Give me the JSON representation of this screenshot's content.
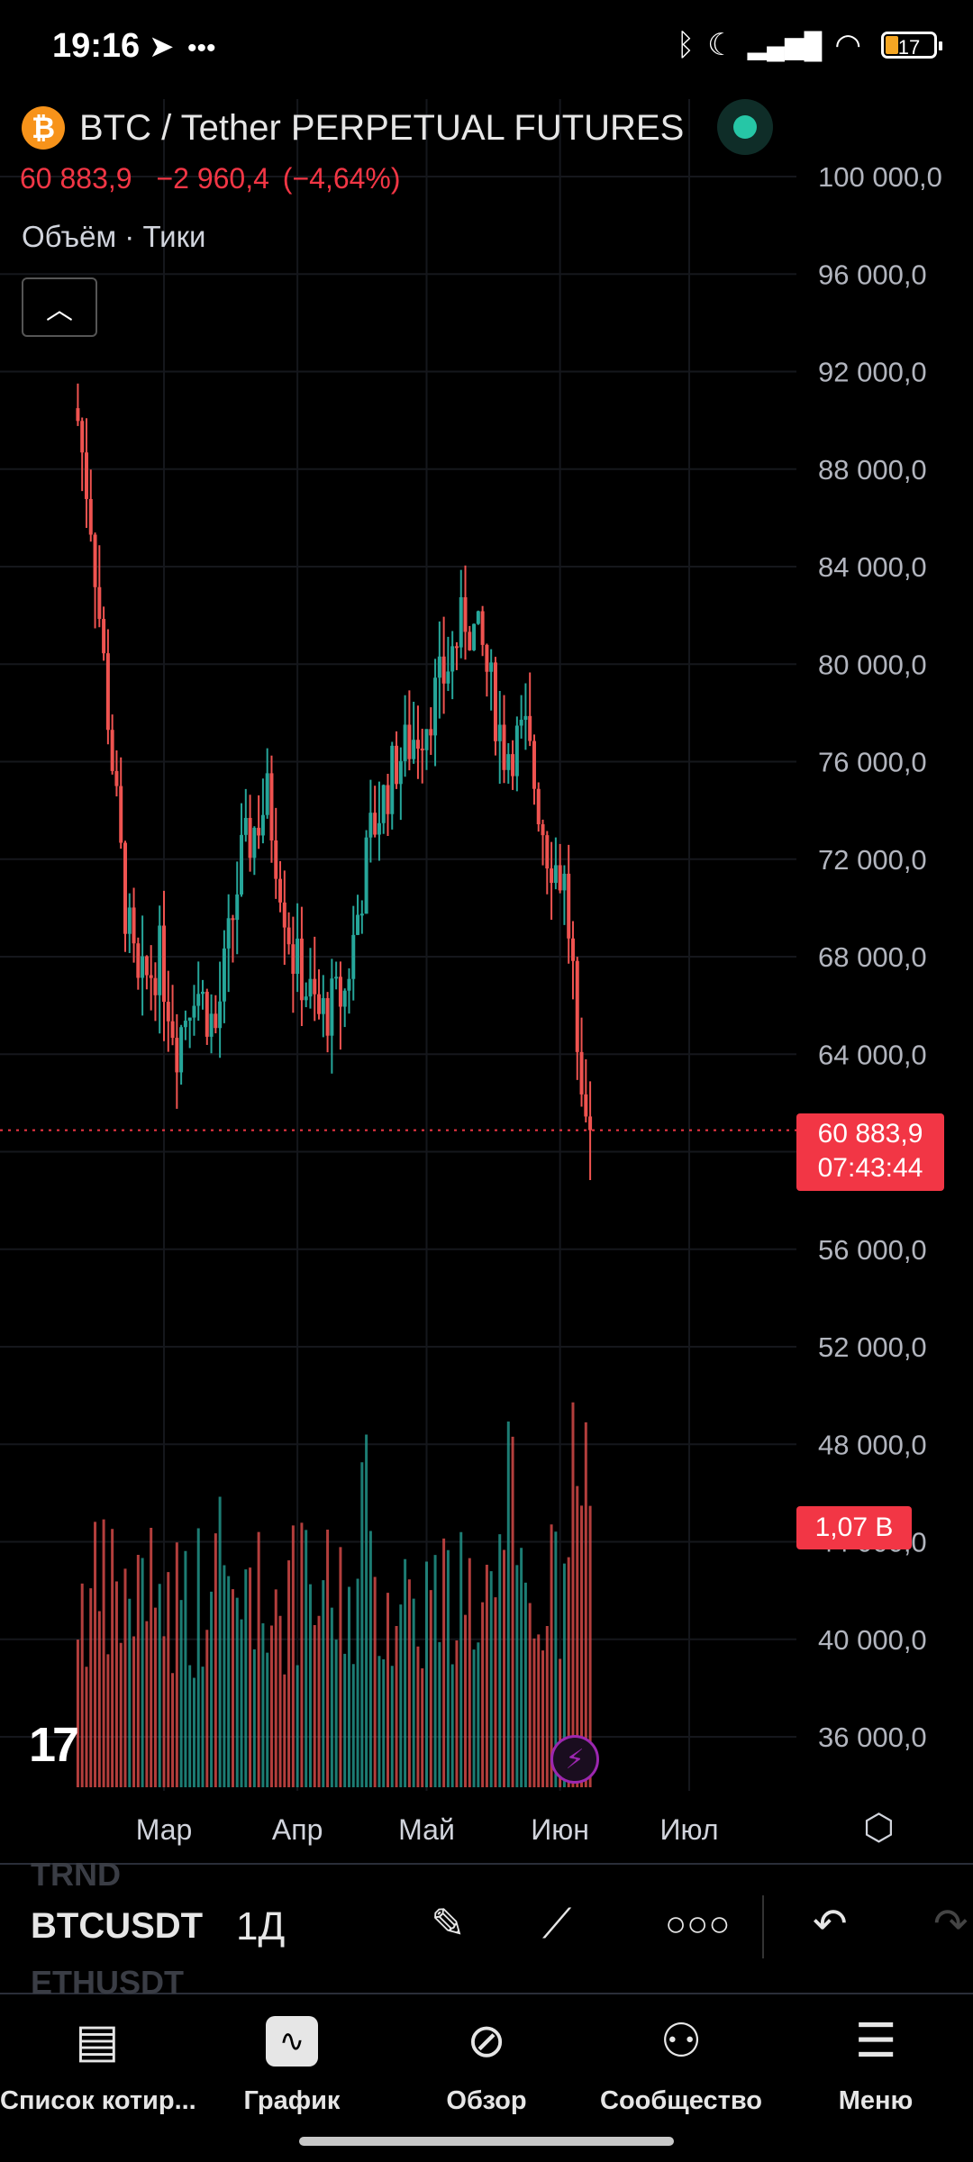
{
  "status_bar": {
    "time": "19:16",
    "extra": "•••",
    "battery": "17"
  },
  "header": {
    "logo": "₿",
    "symbol_title": "BTC / Tether PERPETUAL FUTURES",
    "last_price": "60 883,9",
    "change": "−2 960,4",
    "change_pct": "(−4,64%)",
    "indicators": "Объём · Тики",
    "collapse_icon": "chevron-up-icon"
  },
  "axis": {
    "y_ticks": [
      "100 000,0",
      "96 000,0",
      "92 000,0",
      "88 000,0",
      "84 000,0",
      "80 000,0",
      "76 000,0",
      "72 000,0",
      "68 000,0",
      "64 000,0",
      "56 000,0",
      "52 000,0",
      "48 000,0",
      "40 000,0",
      "36 000,0"
    ],
    "x_ticks": [
      "Мар",
      "Апр",
      "Май",
      "Июн",
      "Июл"
    ]
  },
  "price_tag": {
    "price": "60 883,9",
    "countdown": "07:43:44"
  },
  "volume_tag": "1,07 B",
  "colors": {
    "up": "#26a69a",
    "down": "#ef5350",
    "accent": "#f23645",
    "background": "#000000"
  },
  "chart_data": {
    "type": "candlestick",
    "title": "",
    "ylim": [
      33000,
      102000
    ],
    "current_price": 60883.9,
    "last_volume": "1,07 B",
    "anchors": [
      {
        "date": "2024-02-10",
        "close": 90000
      },
      {
        "date": "2024-02-13",
        "close": 86000
      },
      {
        "date": "2024-02-17",
        "close": 78000
      },
      {
        "date": "2024-02-21",
        "close": 70000
      },
      {
        "date": "2024-02-24",
        "close": 66500
      },
      {
        "date": "2024-02-29",
        "close": 68000
      },
      {
        "date": "2024-03-04",
        "close": 64500
      },
      {
        "date": "2024-03-08",
        "close": 67000
      },
      {
        "date": "2024-03-13",
        "close": 65000
      },
      {
        "date": "2024-03-19",
        "close": 72000
      },
      {
        "date": "2024-03-25",
        "close": 74500
      },
      {
        "date": "2024-03-31",
        "close": 68000
      },
      {
        "date": "2024-04-06",
        "close": 65500
      },
      {
        "date": "2024-04-12",
        "close": 66500
      },
      {
        "date": "2024-04-18",
        "close": 73000
      },
      {
        "date": "2024-04-24",
        "close": 76000
      },
      {
        "date": "2024-04-30",
        "close": 77500
      },
      {
        "date": "2024-05-05",
        "close": 79500
      },
      {
        "date": "2024-05-10",
        "close": 82000
      },
      {
        "date": "2024-05-14",
        "close": 80500
      },
      {
        "date": "2024-05-19",
        "close": 76500
      },
      {
        "date": "2024-05-24",
        "close": 77000
      },
      {
        "date": "2024-05-29",
        "close": 72500
      },
      {
        "date": "2024-06-02",
        "close": 71000
      },
      {
        "date": "2024-06-06",
        "close": 63500
      },
      {
        "date": "2024-06-08",
        "close": 60883.9
      }
    ]
  },
  "toolbar": {
    "ticker_prev": "TRND",
    "ticker": "BTCUSDT",
    "ticker_next": "ETHUSDT",
    "interval": "1Д",
    "tools": [
      "pencil-draw-icon",
      "trend-lines-icon",
      "more-icon",
      "undo-icon"
    ]
  },
  "nav": [
    {
      "label": "Список котир...",
      "icon": "watchlist-icon"
    },
    {
      "label": "График",
      "icon": "chart-icon"
    },
    {
      "label": "Обзор",
      "icon": "compass-icon"
    },
    {
      "label": "Сообщество",
      "icon": "community-icon"
    },
    {
      "label": "Меню",
      "icon": "menu-icon"
    }
  ]
}
